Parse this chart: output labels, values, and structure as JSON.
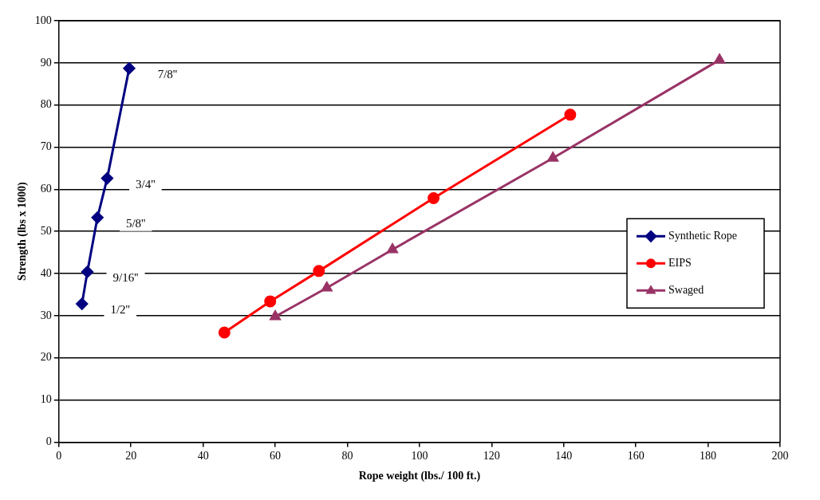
{
  "chart_data": {
    "type": "line",
    "xlabel": "Rope weight (lbs./ 100 ft.)",
    "ylabel": "Strength (lbs x 1000)",
    "xlim": [
      0,
      200
    ],
    "xticks": [
      0,
      20,
      40,
      60,
      80,
      100,
      120,
      140,
      160,
      180,
      200
    ],
    "ylim": [
      0,
      100
    ],
    "yticks": [
      0,
      10,
      20,
      30,
      40,
      50,
      60,
      70,
      80,
      90,
      100
    ],
    "grid": "y",
    "legend": "right",
    "series": [
      {
        "name": "Synthetic Rope",
        "color": "#000080",
        "marker": "diamond",
        "x": [
          6.4,
          7.9,
          10.7,
          13.4,
          19.5
        ],
        "values": [
          32.8,
          40.4,
          53.3,
          62.6,
          88.7
        ]
      },
      {
        "name": "EIPS",
        "color": "#ff0000",
        "marker": "circle",
        "x": [
          45.9,
          58.6,
          72.1,
          103.9,
          141.8
        ],
        "values": [
          26.0,
          33.4,
          40.6,
          57.9,
          77.7
        ]
      },
      {
        "name": "Swaged",
        "color": "#993366",
        "marker": "triangle",
        "x": [
          60,
          74.3,
          92.5,
          137,
          183.2
        ],
        "values": [
          29.8,
          36.6,
          45.7,
          67.4,
          90.7
        ]
      }
    ],
    "annotations": [
      {
        "text": "7/8''",
        "x": 19.5,
        "y": 88.7
      },
      {
        "text": "3/4''",
        "x": 13.4,
        "y": 62.6
      },
      {
        "text": "5/8''",
        "x": 10.7,
        "y": 53.3
      },
      {
        "text": "9/16''",
        "x": 7.9,
        "y": 40.4
      },
      {
        "text": "1/2''",
        "x": 6.4,
        "y": 32.8
      }
    ]
  }
}
